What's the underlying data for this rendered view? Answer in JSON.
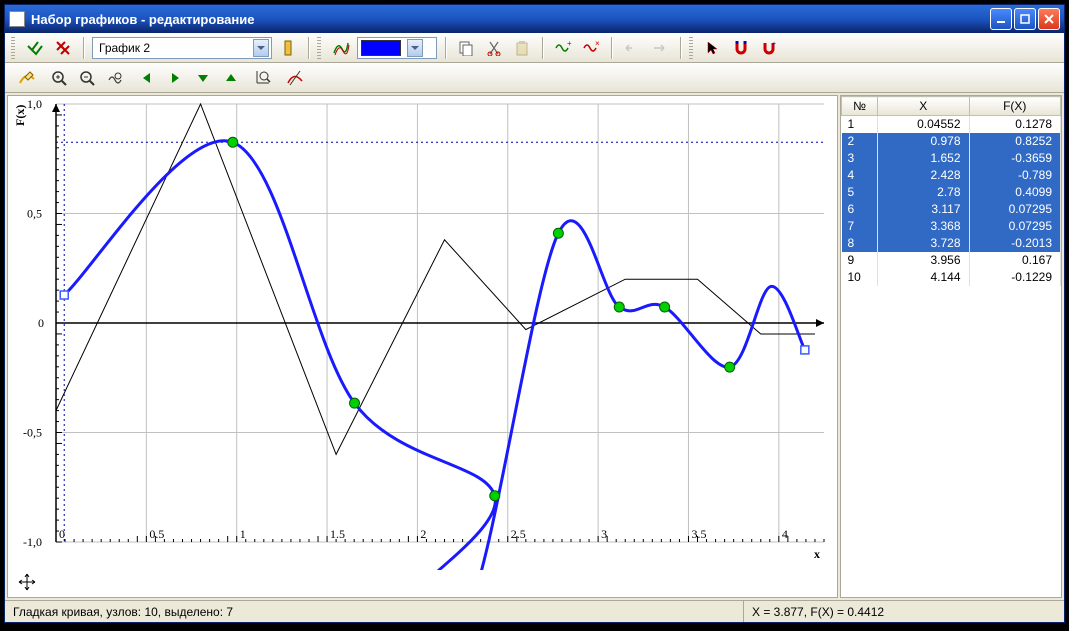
{
  "window": {
    "title": "Набор графиков - редактирование"
  },
  "toolbar1": {
    "graph_select": "График 2",
    "color_swatch": "#0000ff"
  },
  "chart": {
    "type": "line",
    "xlim": [
      0,
      4.25
    ],
    "ylim": [
      -1.0,
      1.0
    ],
    "xtick_step": 0.5,
    "ytick_step": 0.5,
    "xlabel": "x",
    "ylabel": "F(x)",
    "background_color": "#ffffff",
    "grid_color": "#c0c0c0",
    "axis_color": "#000000",
    "guide_dot_color": "#0000aa",
    "selection_box_color": "#0000ee",
    "series": [
      {
        "name": "polyline",
        "color": "#000000",
        "width": 1,
        "points": [
          [
            0.0,
            -0.4
          ],
          [
            0.8,
            1.0
          ],
          [
            1.55,
            -0.6
          ],
          [
            2.15,
            0.38
          ],
          [
            2.6,
            -0.03
          ],
          [
            3.15,
            0.2
          ],
          [
            3.55,
            0.2
          ],
          [
            3.9,
            -0.05
          ],
          [
            4.2,
            -0.05
          ]
        ]
      },
      {
        "name": "smooth",
        "color": "#1a1aff",
        "width": 3,
        "marker_color": "#00d000",
        "marker_border": "#006000",
        "marker_radius": 5,
        "endpoint_box_color": "#3a5aff",
        "nodes": [
          [
            0.04552,
            0.1278
          ],
          [
            0.978,
            0.8252
          ],
          [
            1.652,
            -0.3659
          ],
          [
            2.428,
            -0.789
          ],
          [
            2.78,
            0.4099
          ],
          [
            3.117,
            0.07295
          ],
          [
            3.368,
            0.07295
          ],
          [
            3.728,
            -0.2013
          ],
          [
            3.956,
            0.167
          ],
          [
            4.144,
            -0.1229
          ]
        ],
        "path_extra": [
          [
            1.95,
            -1.2
          ],
          [
            2.3,
            -1.2
          ]
        ]
      }
    ]
  },
  "datagrid": {
    "columns": {
      "idx": "№",
      "x": "X",
      "fx": "F(X)"
    },
    "rows": [
      {
        "n": "1",
        "x": "0.04552",
        "fx": "0.1278",
        "selected": false
      },
      {
        "n": "2",
        "x": "0.978",
        "fx": "0.8252",
        "selected": true
      },
      {
        "n": "3",
        "x": "1.652",
        "fx": "-0.3659",
        "selected": true
      },
      {
        "n": "4",
        "x": "2.428",
        "fx": "-0.789",
        "selected": true
      },
      {
        "n": "5",
        "x": "2.78",
        "fx": "0.4099",
        "selected": true
      },
      {
        "n": "6",
        "x": "3.117",
        "fx": "0.07295",
        "selected": true
      },
      {
        "n": "7",
        "x": "3.368",
        "fx": "0.07295",
        "selected": true
      },
      {
        "n": "8",
        "x": "3.728",
        "fx": "-0.2013",
        "selected": true
      },
      {
        "n": "9",
        "x": "3.956",
        "fx": "0.167",
        "selected": false
      },
      {
        "n": "10",
        "x": "4.144",
        "fx": "-0.1229",
        "selected": false
      }
    ]
  },
  "statusbar": {
    "info": "Гладкая кривая, узлов: 10, выделено: 7",
    "coord": "X = 3.877, F(X) = 0.4412"
  }
}
